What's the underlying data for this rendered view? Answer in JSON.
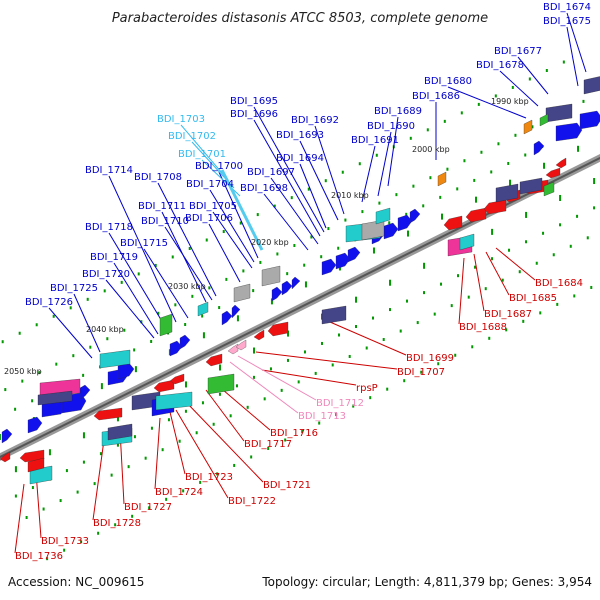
{
  "title": "Parabacteroides distasonis ATCC 8503, complete genome",
  "accession": "Accession: NC_009615",
  "summary": "Topology: circular; Length: 4,811,379 bp; Genes: 3,954",
  "scale_labels": [
    "1990 kbp",
    "2000 kbp",
    "2010 kbp",
    "2020 kbp",
    "2030 kbp",
    "2040 kbp",
    "2050 kbp"
  ],
  "colors": {
    "forward_label": "#0000cc",
    "reverse_label": "#cc0000",
    "highlight_label": "#33bbee",
    "pink_label": "#ee88bb",
    "backbone": "#888888",
    "tick_green": "#009900"
  },
  "forward_labels": [
    "BDI_1674",
    "BDI_1675",
    "BDI_1677",
    "BDI_1678",
    "BDI_1680",
    "BDI_1686",
    "BDI_1689",
    "BDI_1690",
    "BDI_1691",
    "BDI_1692",
    "BDI_1693",
    "BDI_1694",
    "BDI_1695",
    "BDI_1696",
    "BDI_1697",
    "BDI_1698",
    "BDI_1700",
    "BDI_1704",
    "BDI_1705",
    "BDI_1706",
    "BDI_1708",
    "BDI_1710",
    "BDI_1711",
    "BDI_1714",
    "BDI_1715",
    "BDI_1718",
    "BDI_1719",
    "BDI_1720",
    "BDI_1725",
    "BDI_1726"
  ],
  "highlight_labels": [
    "BDI_1703",
    "BDI_1702",
    "BDI_1701"
  ],
  "reverse_labels": [
    "BDI_1684",
    "BDI_1685",
    "BDI_1687",
    "BDI_1688",
    "BDI_1699",
    "BDI_1707",
    "rpsP",
    "BDI_1716",
    "BDI_1717",
    "BDI_1721",
    "BDI_1722",
    "BDI_1723",
    "BDI_1724",
    "BDI_1727",
    "BDI_1728",
    "BDI_1733",
    "BDI_1736"
  ],
  "pink_labels": [
    "BDI_1712",
    "BDI_1713"
  ]
}
